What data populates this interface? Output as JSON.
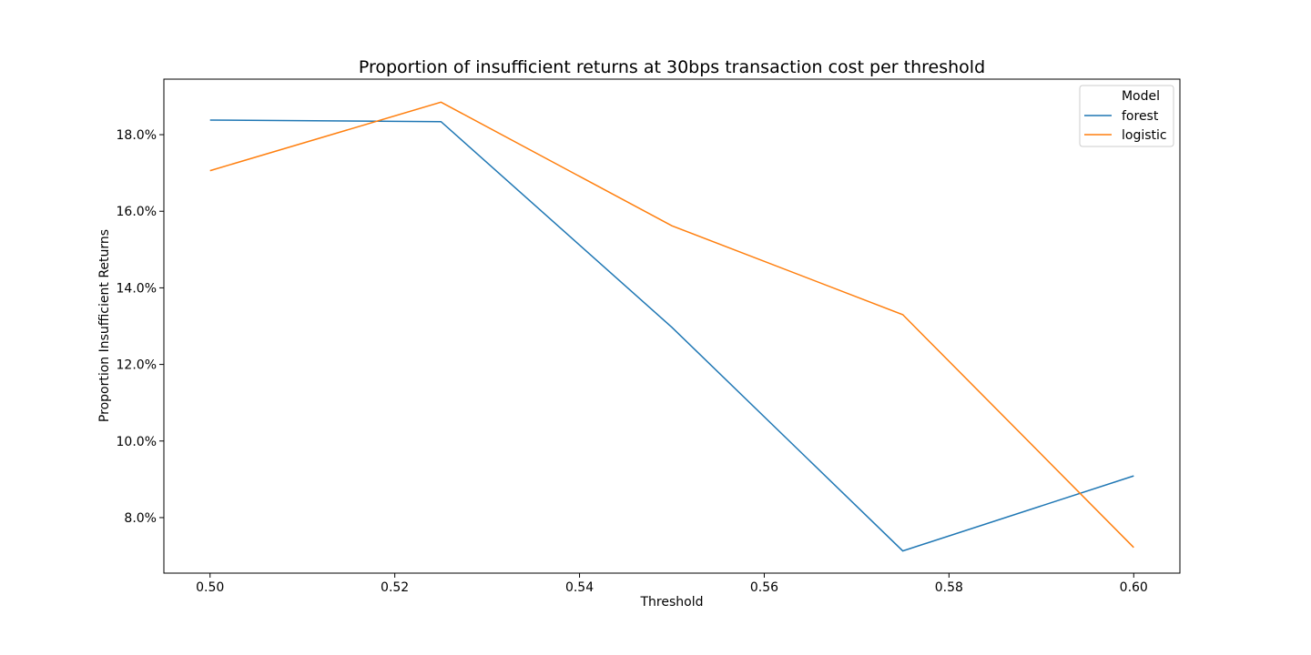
{
  "chart_data": {
    "type": "line",
    "title": "Proportion of insufficient returns at 30bps transaction cost per threshold",
    "xlabel": "Threshold",
    "ylabel": "Proportion Insufficient Returns",
    "x": [
      0.5,
      0.525,
      0.55,
      0.575,
      0.6
    ],
    "x_ticks": [
      0.5,
      0.52,
      0.54,
      0.56,
      0.58,
      0.6
    ],
    "x_tick_labels": [
      "0.50",
      "0.52",
      "0.54",
      "0.56",
      "0.58",
      "0.60"
    ],
    "y_ticks": [
      0.08,
      0.1,
      0.12,
      0.14,
      0.16,
      0.18
    ],
    "y_tick_labels": [
      "8.0%",
      "10.0%",
      "12.0%",
      "14.0%",
      "16.0%",
      "18.0%"
    ],
    "xlim": [
      0.495,
      0.605
    ],
    "ylim": [
      0.0655,
      0.1945
    ],
    "legend_title": "Model",
    "legend_position": "top-right",
    "series": [
      {
        "name": "forest",
        "color": "#1f77b4",
        "values": [
          0.1838,
          0.1834,
          0.1297,
          0.0713,
          0.0909
        ]
      },
      {
        "name": "logistic",
        "color": "#ff7f0e",
        "values": [
          0.1706,
          0.1885,
          0.1562,
          0.133,
          0.0722
        ]
      }
    ]
  }
}
